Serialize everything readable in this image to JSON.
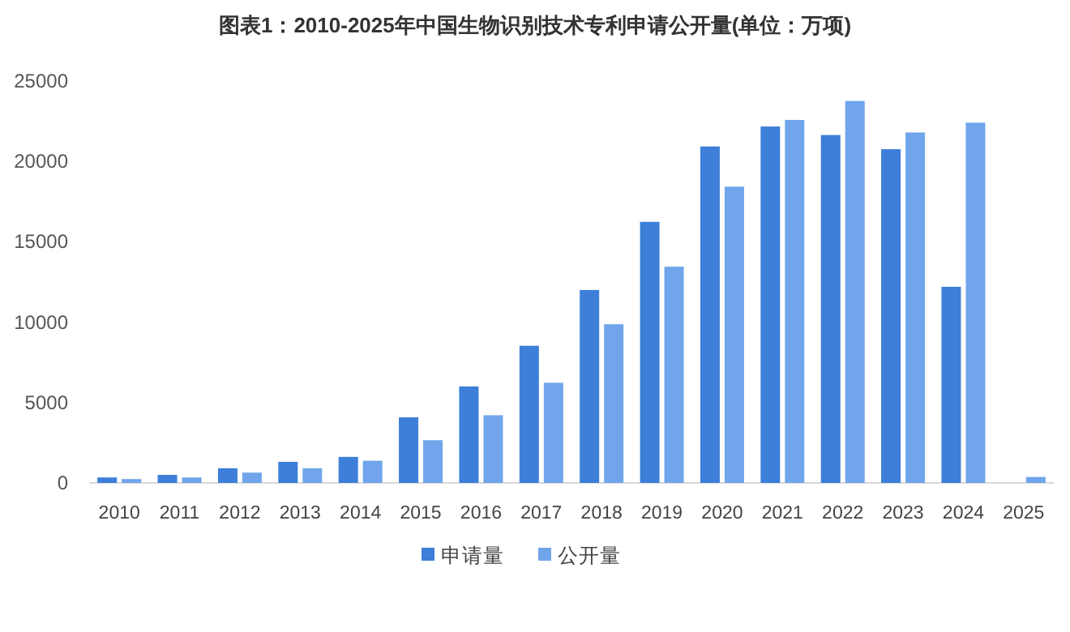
{
  "chart_data": {
    "type": "bar",
    "title": "图表1：2010-2025年中国生物识别技术专利申请公开量(单位：万项)",
    "categories": [
      "2010",
      "2011",
      "2012",
      "2013",
      "2014",
      "2015",
      "2016",
      "2017",
      "2018",
      "2019",
      "2020",
      "2021",
      "2022",
      "2023",
      "2024",
      "2025"
    ],
    "series": [
      {
        "name": "申请量",
        "color": "#3d7fd9",
        "values": [
          340,
          500,
          910,
          1310,
          1620,
          4080,
          6000,
          8530,
          12000,
          16240,
          20930,
          22170,
          21640,
          20760,
          12200,
          null
        ]
      },
      {
        "name": "公开量",
        "color": "#70a5eb",
        "values": [
          240,
          340,
          640,
          910,
          1380,
          2660,
          4210,
          6230,
          9870,
          13450,
          18430,
          22580,
          23760,
          21800,
          22410,
          370
        ]
      }
    ],
    "ylim": [
      0,
      25000
    ],
    "yticks": [
      0,
      5000,
      10000,
      15000,
      20000,
      25000
    ],
    "legend": "bottom"
  }
}
